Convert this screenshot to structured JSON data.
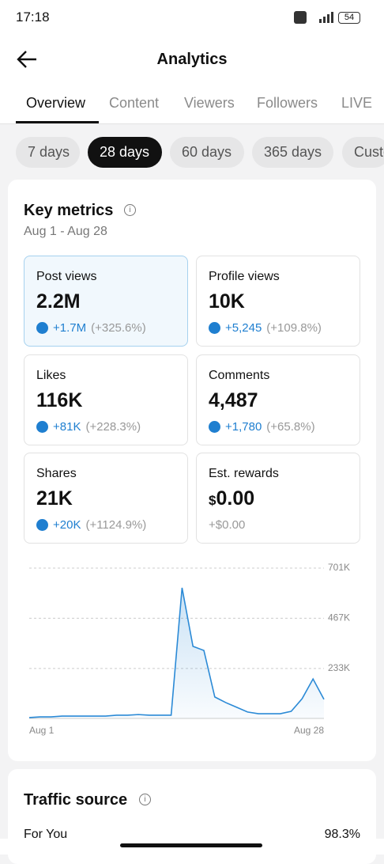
{
  "status_bar": {
    "time": "17:18",
    "battery": "54"
  },
  "header": {
    "title": "Analytics"
  },
  "tabs": [
    "Overview",
    "Content",
    "Viewers",
    "Followers",
    "LIVE"
  ],
  "ranges": [
    "7 days",
    "28 days",
    "60 days",
    "365 days",
    "Custom"
  ],
  "key_metrics": {
    "title": "Key metrics",
    "date_range": "Aug 1 - Aug 28",
    "cards": [
      {
        "label": "Post views",
        "value": "2.2M",
        "change": "+1.7M",
        "percent": "(+325.6%)"
      },
      {
        "label": "Profile views",
        "value": "10K",
        "change": "+5,245",
        "percent": "(+109.8%)"
      },
      {
        "label": "Likes",
        "value": "116K",
        "change": "+81K",
        "percent": "(+228.3%)"
      },
      {
        "label": "Comments",
        "value": "4,487",
        "change": "+1,780",
        "percent": "(+65.8%)"
      },
      {
        "label": "Shares",
        "value": "21K",
        "change": "+20K",
        "percent": "(+1124.9%)"
      },
      {
        "label": "Est. rewards",
        "currency": "$",
        "value": "0.00",
        "change": "+$0.00"
      }
    ]
  },
  "chart_data": {
    "type": "line",
    "color": "#2b8ad6",
    "categories": [
      "Aug 1",
      null,
      null,
      null,
      null,
      null,
      null,
      null,
      null,
      null,
      null,
      null,
      null,
      null,
      null,
      null,
      null,
      null,
      null,
      null,
      null,
      null,
      null,
      null,
      null,
      null,
      null,
      "Aug 28"
    ],
    "series": [
      {
        "name": "Post views",
        "color": "#2b8ad6",
        "values": [
          4000,
          7000,
          7000,
          11000,
          11000,
          11000,
          11000,
          11000,
          15000,
          15000,
          18000,
          15000,
          15000,
          15000,
          609000,
          336000,
          317000,
          100000,
          74000,
          52000,
          30000,
          22000,
          22000,
          22000,
          33000,
          92000,
          184000,
          89000
        ]
      }
    ],
    "ylim": [
      0,
      701000
    ],
    "yticks": [
      {
        "value": 233000,
        "label": "233K"
      },
      {
        "value": 467000,
        "label": "467K"
      },
      {
        "value": 701000,
        "label": "701K"
      }
    ],
    "grid": true
  },
  "traffic_source": {
    "title": "Traffic source",
    "rows": [
      {
        "label": "For You",
        "value": "98.3%"
      }
    ]
  }
}
